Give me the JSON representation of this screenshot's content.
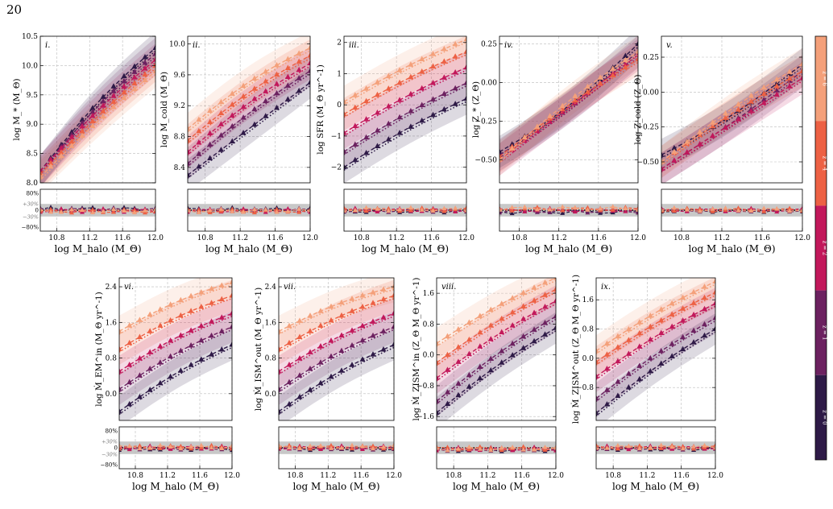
{
  "page_number": "20",
  "z_colors": [
    "#2e1a47",
    "#6c2160",
    "#c2185b",
    "#ed6144",
    "#f4a07a",
    "#fbd3b4"
  ],
  "colorbar": {
    "labels": [
      "z = 0",
      "z = 1",
      "z = 2",
      "z = 4",
      "z = 6"
    ],
    "colors": [
      "#2e1a47",
      "#6c2160",
      "#c2185b",
      "#ed6144",
      "#f4a07a"
    ]
  },
  "x_axis": {
    "label": "log  M_halo  (M_Θ)",
    "ticks": [
      "10.8",
      "11.2",
      "11.6",
      "12.0"
    ],
    "xlim": [
      10.6,
      12.0
    ]
  },
  "residual_axis": {
    "ticks": [
      "80%",
      "+30%",
      "0",
      "−30%",
      "−80%"
    ]
  },
  "chart_data": [
    {
      "type": "line",
      "label": "i.",
      "ylabel": "log M_* (M_Θ)",
      "ylim": [
        8.0,
        10.5
      ],
      "yticks": [
        "8.0",
        "8.5",
        "9.0",
        "9.5",
        "10.0",
        "10.5"
      ],
      "series": [
        {
          "name": "z = 0",
          "start": 8.2,
          "end": 10.3,
          "bend": 0.12
        },
        {
          "name": "z = 1",
          "start": 8.2,
          "end": 10.2,
          "bend": 0.1
        },
        {
          "name": "z = 2",
          "start": 8.2,
          "end": 10.1,
          "bend": 0.08
        },
        {
          "name": "z = 4",
          "start": 8.15,
          "end": 10.0,
          "bend": 0.06
        },
        {
          "name": "z = 6",
          "start": 8.1,
          "end": 9.9,
          "bend": 0.05
        }
      ],
      "residual_offsets": [
        0.05,
        0.02,
        -0.02,
        -0.05,
        -0.04
      ]
    },
    {
      "type": "line",
      "label": "ii.",
      "ylabel": "log M_cold (M_Θ)",
      "ylim": [
        8.2,
        10.1
      ],
      "yticks": [
        "8.4",
        "8.8",
        "9.2",
        "9.6",
        "10.0"
      ],
      "series": [
        {
          "name": "z = 0",
          "start": 8.3,
          "end": 9.5,
          "bend": 0.0
        },
        {
          "name": "z = 1",
          "start": 8.45,
          "end": 9.65,
          "bend": 0.05
        },
        {
          "name": "z = 2",
          "start": 8.6,
          "end": 9.75,
          "bend": 0.06
        },
        {
          "name": "z = 4",
          "start": 8.75,
          "end": 9.85,
          "bend": 0.07
        },
        {
          "name": "z = 6",
          "start": 8.9,
          "end": 9.95,
          "bend": 0.08
        }
      ],
      "residual_offsets": [
        0.03,
        0.0,
        -0.02,
        -0.04,
        -0.03
      ]
    },
    {
      "type": "line",
      "label": "iii.",
      "ylabel": "log SFR (M_Θ yr^-1)",
      "ylim": [
        -2.5,
        2.2
      ],
      "yticks": [
        "−2",
        "−1",
        "0",
        "1",
        "2"
      ],
      "series": [
        {
          "name": "z = 0",
          "start": -2.0,
          "end": 0.2,
          "bend": 0.1
        },
        {
          "name": "z = 1",
          "start": -1.5,
          "end": 0.7,
          "bend": 0.1
        },
        {
          "name": "z = 2",
          "start": -0.9,
          "end": 1.2,
          "bend": 0.1
        },
        {
          "name": "z = 4",
          "start": -0.3,
          "end": 1.7,
          "bend": 0.1
        },
        {
          "name": "z = 6",
          "start": 0.1,
          "end": 2.1,
          "bend": 0.1
        }
      ],
      "residual_offsets": [
        -0.04,
        -0.02,
        0.0,
        0.02,
        0.03
      ]
    },
    {
      "type": "line",
      "label": "iv.",
      "ylabel": "log Z_* (Z_Θ)",
      "ylim": [
        -0.65,
        0.3
      ],
      "yticks": [
        "−0.50",
        "−0.25",
        "0.00",
        "0.25"
      ],
      "series": [
        {
          "name": "z = 0",
          "start": -0.45,
          "end": 0.25,
          "bend": -0.05
        },
        {
          "name": "z = 1",
          "start": -0.47,
          "end": 0.2,
          "bend": -0.03
        },
        {
          "name": "z = 2",
          "start": -0.5,
          "end": 0.18,
          "bend": 0.0
        },
        {
          "name": "z = 4",
          "start": -0.48,
          "end": 0.15,
          "bend": 0.02
        },
        {
          "name": "z = 6",
          "start": -0.5,
          "end": 0.2,
          "bend": 0.03
        }
      ],
      "residual_offsets": [
        -0.08,
        -0.05,
        0.0,
        0.05,
        0.08
      ]
    },
    {
      "type": "line",
      "label": "v.",
      "ylabel": "log Z_cold (Z_Θ)",
      "ylim": [
        -0.65,
        0.4
      ],
      "yticks": [
        "−0.50",
        "−0.25",
        "0.00",
        "0.25"
      ],
      "series": [
        {
          "name": "z = 0",
          "start": -0.45,
          "end": 0.2,
          "bend": -0.04
        },
        {
          "name": "z = 1",
          "start": -0.55,
          "end": 0.15,
          "bend": -0.02
        },
        {
          "name": "z = 2",
          "start": -0.55,
          "end": 0.1,
          "bend": 0.0
        },
        {
          "name": "z = 4",
          "start": -0.5,
          "end": 0.15,
          "bend": 0.02
        },
        {
          "name": "z = 6",
          "start": -0.5,
          "end": 0.2,
          "bend": 0.03
        }
      ],
      "residual_offsets": [
        -0.02,
        -0.01,
        0.0,
        0.01,
        0.02
      ]
    },
    {
      "type": "line",
      "label": "vi.",
      "ylabel": "log Ṁ_EM^in (M_Θ yr^-1)",
      "ylim": [
        -0.6,
        2.6
      ],
      "yticks": [
        "0.0",
        "0.8",
        "1.6",
        "2.4"
      ],
      "series": [
        {
          "name": "z = 0",
          "start": -0.4,
          "end": 1.1,
          "bend": 0.1
        },
        {
          "name": "z = 1",
          "start": 0.1,
          "end": 1.5,
          "bend": 0.1
        },
        {
          "name": "z = 2",
          "start": 0.5,
          "end": 1.8,
          "bend": 0.1
        },
        {
          "name": "z = 4",
          "start": 1.0,
          "end": 2.2,
          "bend": 0.1
        },
        {
          "name": "z = 6",
          "start": 1.4,
          "end": 2.5,
          "bend": 0.1
        }
      ],
      "residual_offsets": [
        -0.04,
        -0.02,
        0.0,
        0.02,
        0.03
      ]
    },
    {
      "type": "line",
      "label": "vii.",
      "ylabel": "log Ṁ_ISM^out (M_Θ yr^-1)",
      "ylim": [
        -0.6,
        2.6
      ],
      "yticks": [
        "0.0",
        "0.8",
        "1.6",
        "2.4"
      ],
      "series": [
        {
          "name": "z = 0",
          "start": -0.4,
          "end": 1.1,
          "bend": 0.1
        },
        {
          "name": "z = 1",
          "start": 0.1,
          "end": 1.5,
          "bend": 0.1
        },
        {
          "name": "z = 2",
          "start": 0.5,
          "end": 1.8,
          "bend": 0.1
        },
        {
          "name": "z = 4",
          "start": 1.0,
          "end": 2.2,
          "bend": 0.1
        },
        {
          "name": "z = 6",
          "start": 1.4,
          "end": 2.4,
          "bend": 0.1
        }
      ],
      "residual_offsets": [
        -0.04,
        -0.02,
        0.0,
        0.02,
        0.03
      ]
    },
    {
      "type": "line",
      "label": "viii.",
      "ylabel": "log Ṁ_ZISM^in (Z_Θ M_Θ yr^-1)",
      "ylim": [
        -1.7,
        2.0
      ],
      "yticks": [
        "−1.6",
        "−0.8",
        "0.0",
        "0.8",
        "1.6"
      ],
      "series": [
        {
          "name": "z = 0",
          "start": -1.5,
          "end": 0.7,
          "bend": 0.1
        },
        {
          "name": "z = 1",
          "start": -1.2,
          "end": 1.0,
          "bend": 0.1
        },
        {
          "name": "z = 2",
          "start": -0.6,
          "end": 1.4,
          "bend": 0.1
        },
        {
          "name": "z = 4",
          "start": -0.2,
          "end": 1.7,
          "bend": 0.1
        },
        {
          "name": "z = 6",
          "start": 0.3,
          "end": 2.0,
          "bend": 0.1
        }
      ],
      "residual_offsets": [
        -0.1,
        -0.08,
        -0.06,
        -0.04,
        -0.05
      ]
    },
    {
      "type": "line",
      "label": "ix.",
      "ylabel": "log Ṁ_ZISM^out (Z_Θ M_Θ yr^-1)",
      "ylim": [
        -1.7,
        2.2
      ],
      "yticks": [
        "−0.8",
        "0.0",
        "0.8",
        "1.6"
      ],
      "series": [
        {
          "name": "z = 0",
          "start": -1.5,
          "end": 0.8,
          "bend": 0.1
        },
        {
          "name": "z = 1",
          "start": -1.1,
          "end": 1.1,
          "bend": 0.1
        },
        {
          "name": "z = 2",
          "start": -0.5,
          "end": 1.5,
          "bend": 0.1
        },
        {
          "name": "z = 4",
          "start": -0.1,
          "end": 1.8,
          "bend": 0.1
        },
        {
          "name": "z = 6",
          "start": 0.2,
          "end": 2.1,
          "bend": 0.1
        }
      ],
      "residual_offsets": [
        -0.04,
        -0.02,
        0.0,
        0.02,
        0.03
      ]
    }
  ]
}
